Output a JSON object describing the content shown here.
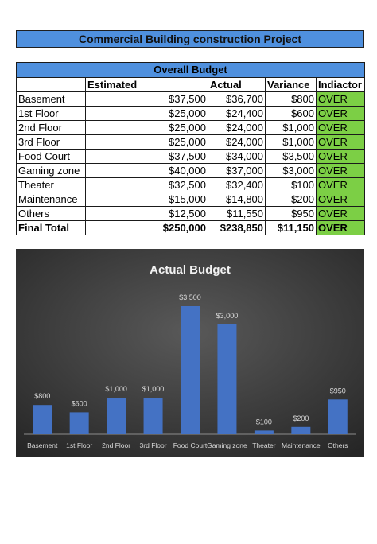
{
  "title": "Commercial Building construction Project",
  "table": {
    "heading": "Overall Budget",
    "columns": [
      "",
      "Estimated",
      "Actual",
      "Variance",
      "Indiactor"
    ],
    "rows": [
      {
        "label": "Basement",
        "estimated": "$37,500",
        "actual": "$36,700",
        "variance": "$800",
        "indicator": "OVER"
      },
      {
        "label": "1st Floor",
        "estimated": "$25,000",
        "actual": "$24,400",
        "variance": "$600",
        "indicator": "OVER"
      },
      {
        "label": "2nd Floor",
        "estimated": "$25,000",
        "actual": "$24,000",
        "variance": "$1,000",
        "indicator": "OVER"
      },
      {
        "label": "3rd Floor",
        "estimated": "$25,000",
        "actual": "$24,000",
        "variance": "$1,000",
        "indicator": "OVER"
      },
      {
        "label": "Food Court",
        "estimated": "$37,500",
        "actual": "$34,000",
        "variance": "$3,500",
        "indicator": "OVER"
      },
      {
        "label": "Gaming zone",
        "estimated": "$40,000",
        "actual": "$37,000",
        "variance": "$3,000",
        "indicator": "OVER"
      },
      {
        "label": "Theater",
        "estimated": "$32,500",
        "actual": "$32,400",
        "variance": "$100",
        "indicator": "OVER"
      },
      {
        "label": "Maintenance",
        "estimated": "$15,000",
        "actual": "$14,800",
        "variance": "$200",
        "indicator": "OVER"
      },
      {
        "label": "Others",
        "estimated": "$12,500",
        "actual": "$11,550",
        "variance": "$950",
        "indicator": "OVER"
      }
    ],
    "total": {
      "label": "Final Total",
      "estimated": "$250,000",
      "actual": "$238,850",
      "variance": "$11,150",
      "indicator": "OVER"
    }
  },
  "colors": {
    "header_blue": "#4f90de",
    "indicator_green": "#7ccf45",
    "chart_bg": "#3a3a3a",
    "bar_blue": "#4472c4"
  },
  "chart_data": {
    "type": "bar",
    "title": "Actual Budget",
    "categories": [
      "Basement",
      "1st Floor",
      "2nd Floor",
      "3rd Floor",
      "Food Court",
      "Gaming zone",
      "Theater",
      "Maintenance",
      "Others"
    ],
    "values": [
      800,
      600,
      1000,
      1000,
      3500,
      3000,
      100,
      200,
      950
    ],
    "data_labels": [
      "$800",
      "$600",
      "$1,000",
      "$1,000",
      "$3,500",
      "$3,000",
      "$100",
      "$200",
      "$950"
    ],
    "ylim": [
      0,
      3500
    ],
    "grid": false,
    "legend": "none"
  }
}
